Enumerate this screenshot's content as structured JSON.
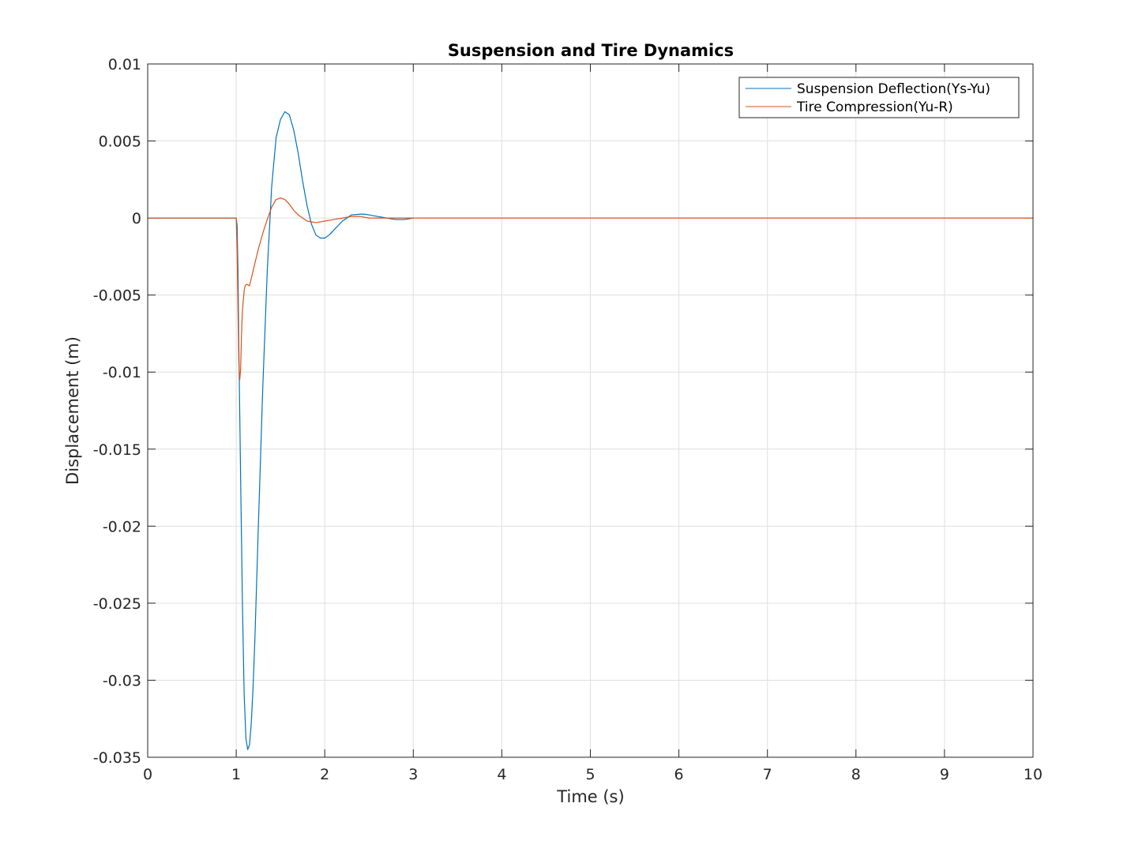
{
  "chart_data": {
    "type": "line",
    "title": "Suspension and Tire Dynamics",
    "xlabel": "Time (s)",
    "ylabel": "Displacement (m)",
    "xlim": [
      0,
      10
    ],
    "ylim": [
      -0.035,
      0.01
    ],
    "xticks": [
      0,
      1,
      2,
      3,
      4,
      5,
      6,
      7,
      8,
      9,
      10
    ],
    "xtick_labels": [
      "0",
      "1",
      "2",
      "3",
      "4",
      "5",
      "6",
      "7",
      "8",
      "9",
      "10"
    ],
    "yticks": [
      0.01,
      0.005,
      0,
      -0.005,
      -0.01,
      -0.015,
      -0.02,
      -0.025,
      -0.03,
      -0.035
    ],
    "ytick_labels": [
      "0.01",
      "0.005",
      "0",
      "-0.005",
      "-0.01",
      "-0.015",
      "-0.02",
      "-0.025",
      "-0.03",
      "-0.035"
    ],
    "grid": true,
    "legend_position": "top-right",
    "series": [
      {
        "name": "Suspension Deflection(Ys-Yu)",
        "color": "#0072BD",
        "x": [
          0,
          1.0,
          1.01,
          1.02,
          1.03,
          1.05,
          1.07,
          1.09,
          1.11,
          1.13,
          1.15,
          1.17,
          1.19,
          1.21,
          1.25,
          1.3,
          1.35,
          1.4,
          1.45,
          1.5,
          1.55,
          1.6,
          1.65,
          1.7,
          1.75,
          1.8,
          1.85,
          1.9,
          1.95,
          2.0,
          2.05,
          2.1,
          2.2,
          2.3,
          2.4,
          2.45,
          2.5,
          2.6,
          2.7,
          2.8,
          2.9,
          3.0
        ],
        "y": [
          0,
          0,
          -0.0005,
          -0.0035,
          -0.0085,
          -0.017,
          -0.025,
          -0.031,
          -0.0338,
          -0.0345,
          -0.0342,
          -0.0328,
          -0.0305,
          -0.0275,
          -0.02,
          -0.011,
          -0.0035,
          0.002,
          0.0052,
          0.0064,
          0.0069,
          0.0067,
          0.0057,
          0.0042,
          0.0024,
          0.0008,
          -0.0004,
          -0.0011,
          -0.0013,
          -0.0013,
          -0.0011,
          -0.0008,
          -0.0002,
          0.0002,
          0.00025,
          0.00025,
          0.0002,
          0.0001,
          0.0,
          -0.0001,
          -0.0001,
          0
        ]
      },
      {
        "name": "Tire Compression(Yu-R)",
        "color": "#D95319",
        "x": [
          0,
          1.0,
          1.01,
          1.02,
          1.03,
          1.04,
          1.05,
          1.06,
          1.07,
          1.09,
          1.1,
          1.12,
          1.15,
          1.2,
          1.25,
          1.3,
          1.35,
          1.4,
          1.45,
          1.5,
          1.55,
          1.6,
          1.65,
          1.7,
          1.8,
          1.9,
          2.0,
          2.1,
          2.2,
          2.3,
          2.4,
          2.5,
          2.7,
          3.0,
          10
        ],
        "y": [
          0,
          0,
          -0.002,
          -0.006,
          -0.0095,
          -0.0105,
          -0.0098,
          -0.0075,
          -0.006,
          -0.0047,
          -0.0044,
          -0.0043,
          -0.0044,
          -0.0032,
          -0.002,
          -0.001,
          -0.0001,
          0.0007,
          0.0012,
          0.0013,
          0.0012,
          0.0009,
          0.0005,
          0.0002,
          -0.0002,
          -0.0003,
          -0.0002,
          -0.0001,
          0.0,
          0.0001,
          0.0001,
          0.0,
          0.0,
          0.0,
          0.0
        ]
      }
    ]
  }
}
